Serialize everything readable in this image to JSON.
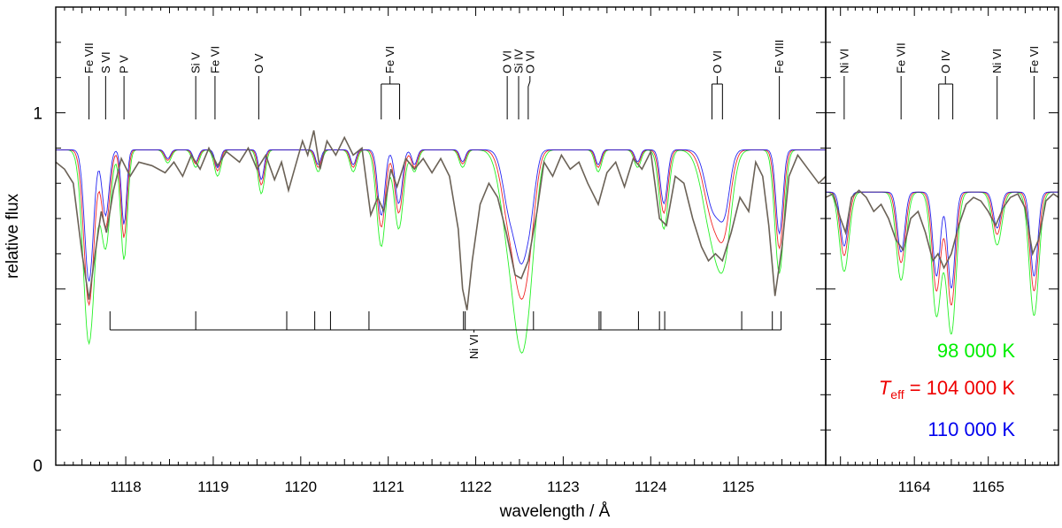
{
  "chart_data": {
    "type": "line",
    "ylabel": "relative flux",
    "xlabel": "wavelength / Å",
    "ylim": [
      0,
      1.3
    ],
    "yticks": [
      {
        "value": 0,
        "label": "0"
      },
      {
        "value": 1,
        "label": "1"
      }
    ],
    "grid": false,
    "legend_position": "bottom-right",
    "legend": [
      {
        "text": "98 000 K",
        "color": "#00ee00",
        "prefix": "",
        "sub": ""
      },
      {
        "text": "= 104 000 K",
        "color": "#ee0000",
        "prefix": "T",
        "sub": "eff"
      },
      {
        "text": "110 000 K",
        "color": "#0000ee",
        "prefix": "",
        "sub": ""
      }
    ],
    "panels": [
      {
        "id": "left",
        "xlim": [
          1117.2,
          1126.0
        ],
        "xticks": [
          1118,
          1119,
          1120,
          1121,
          1122,
          1123,
          1124,
          1125
        ],
        "continuum": 0.895,
        "lines": [
          {
            "x": 1117.58,
            "depth": 0.44,
            "w": 0.05
          },
          {
            "x": 1117.77,
            "depth": 0.22,
            "w": 0.04
          },
          {
            "x": 1117.98,
            "depth": 0.25,
            "w": 0.03
          },
          {
            "x": 1118.48,
            "depth": 0.03,
            "w": 0.03
          },
          {
            "x": 1118.8,
            "depth": 0.04,
            "w": 0.03
          },
          {
            "x": 1119.05,
            "depth": 0.06,
            "w": 0.03
          },
          {
            "x": 1119.55,
            "depth": 0.1,
            "w": 0.03
          },
          {
            "x": 1120.2,
            "depth": 0.05,
            "w": 0.03
          },
          {
            "x": 1120.6,
            "depth": 0.05,
            "w": 0.03
          },
          {
            "x": 1120.92,
            "depth": 0.22,
            "w": 0.04
          },
          {
            "x": 1121.12,
            "depth": 0.18,
            "w": 0.04
          },
          {
            "x": 1121.3,
            "depth": 0.05,
            "w": 0.03
          },
          {
            "x": 1121.85,
            "depth": 0.04,
            "w": 0.03
          },
          {
            "x": 1122.4,
            "depth": 0.22,
            "w": 0.08
          },
          {
            "x": 1122.52,
            "depth": 0.26,
            "w": 0.06
          },
          {
            "x": 1122.62,
            "depth": 0.2,
            "w": 0.06
          },
          {
            "x": 1123.4,
            "depth": 0.05,
            "w": 0.03
          },
          {
            "x": 1123.85,
            "depth": 0.04,
            "w": 0.03
          },
          {
            "x": 1124.15,
            "depth": 0.18,
            "w": 0.04
          },
          {
            "x": 1124.72,
            "depth": 0.2,
            "w": 0.09
          },
          {
            "x": 1124.85,
            "depth": 0.15,
            "w": 0.06
          },
          {
            "x": 1125.47,
            "depth": 0.28,
            "w": 0.04
          }
        ],
        "observed": [
          [
            1117.2,
            0.86
          ],
          [
            1117.3,
            0.84
          ],
          [
            1117.4,
            0.8
          ],
          [
            1117.5,
            0.6
          ],
          [
            1117.58,
            0.47
          ],
          [
            1117.65,
            0.6
          ],
          [
            1117.72,
            0.72
          ],
          [
            1117.78,
            0.66
          ],
          [
            1117.86,
            0.78
          ],
          [
            1117.95,
            0.87
          ],
          [
            1118.05,
            0.82
          ],
          [
            1118.15,
            0.86
          ],
          [
            1118.3,
            0.85
          ],
          [
            1118.45,
            0.83
          ],
          [
            1118.55,
            0.86
          ],
          [
            1118.65,
            0.82
          ],
          [
            1118.75,
            0.88
          ],
          [
            1118.85,
            0.84
          ],
          [
            1118.95,
            0.9
          ],
          [
            1119.05,
            0.85
          ],
          [
            1119.15,
            0.89
          ],
          [
            1119.3,
            0.86
          ],
          [
            1119.4,
            0.9
          ],
          [
            1119.5,
            0.84
          ],
          [
            1119.6,
            0.88
          ],
          [
            1119.7,
            0.81
          ],
          [
            1119.78,
            0.86
          ],
          [
            1119.86,
            0.78
          ],
          [
            1119.94,
            0.85
          ],
          [
            1120.02,
            0.92
          ],
          [
            1120.08,
            0.88
          ],
          [
            1120.15,
            0.95
          ],
          [
            1120.22,
            0.84
          ],
          [
            1120.3,
            0.92
          ],
          [
            1120.4,
            0.88
          ],
          [
            1120.5,
            0.93
          ],
          [
            1120.6,
            0.88
          ],
          [
            1120.7,
            0.9
          ],
          [
            1120.8,
            0.71
          ],
          [
            1120.88,
            0.76
          ],
          [
            1120.95,
            0.72
          ],
          [
            1121.03,
            0.84
          ],
          [
            1121.1,
            0.79
          ],
          [
            1121.2,
            0.87
          ],
          [
            1121.3,
            0.84
          ],
          [
            1121.4,
            0.87
          ],
          [
            1121.5,
            0.83
          ],
          [
            1121.6,
            0.87
          ],
          [
            1121.7,
            0.82
          ],
          [
            1121.8,
            0.67
          ],
          [
            1121.85,
            0.5
          ],
          [
            1121.9,
            0.44
          ],
          [
            1121.96,
            0.58
          ],
          [
            1122.05,
            0.74
          ],
          [
            1122.15,
            0.8
          ],
          [
            1122.25,
            0.76
          ],
          [
            1122.35,
            0.66
          ],
          [
            1122.45,
            0.54
          ],
          [
            1122.52,
            0.53
          ],
          [
            1122.6,
            0.58
          ],
          [
            1122.7,
            0.72
          ],
          [
            1122.78,
            0.86
          ],
          [
            1122.88,
            0.82
          ],
          [
            1122.98,
            0.88
          ],
          [
            1123.08,
            0.84
          ],
          [
            1123.18,
            0.86
          ],
          [
            1123.28,
            0.8
          ],
          [
            1123.4,
            0.74
          ],
          [
            1123.5,
            0.83
          ],
          [
            1123.6,
            0.86
          ],
          [
            1123.7,
            0.79
          ],
          [
            1123.8,
            0.87
          ],
          [
            1123.9,
            0.84
          ],
          [
            1124.0,
            0.89
          ],
          [
            1124.1,
            0.7
          ],
          [
            1124.18,
            0.68
          ],
          [
            1124.28,
            0.82
          ],
          [
            1124.38,
            0.8
          ],
          [
            1124.48,
            0.7
          ],
          [
            1124.58,
            0.62
          ],
          [
            1124.66,
            0.58
          ],
          [
            1124.74,
            0.6
          ],
          [
            1124.82,
            0.58
          ],
          [
            1124.92,
            0.66
          ],
          [
            1125.02,
            0.76
          ],
          [
            1125.12,
            0.72
          ],
          [
            1125.2,
            0.86
          ],
          [
            1125.28,
            0.82
          ],
          [
            1125.35,
            0.68
          ],
          [
            1125.42,
            0.48
          ],
          [
            1125.5,
            0.62
          ],
          [
            1125.58,
            0.82
          ],
          [
            1125.68,
            0.88
          ],
          [
            1125.8,
            0.84
          ],
          [
            1125.92,
            0.8
          ],
          [
            1126.0,
            0.82
          ]
        ],
        "ion_marks": [
          {
            "label": "Fe VII",
            "x": [
              1117.58
            ],
            "top_x": 1117.58
          },
          {
            "label": "S VI",
            "x": [
              1117.77
            ],
            "top_x": 1117.77
          },
          {
            "label": "P V",
            "x": [
              1117.98
            ],
            "top_x": 1117.98
          },
          {
            "label": "Si V",
            "x": [
              1118.8
            ],
            "top_x": 1118.8
          },
          {
            "label": "Fe VI",
            "x": [
              1119.02
            ],
            "top_x": 1119.02
          },
          {
            "label": "O V",
            "x": [
              1119.52
            ],
            "top_x": 1119.52
          },
          {
            "label": "Fe VI",
            "x": [
              1120.92,
              1121.13
            ],
            "top_x": 1121.02
          },
          {
            "label": "O VI",
            "x": [
              1122.36
            ],
            "top_x": 1122.36
          },
          {
            "label": "Si IV",
            "x": [
              1122.49
            ],
            "top_x": 1122.49
          },
          {
            "label": "O VI",
            "x": [
              1122.6
            ],
            "top_x": 1122.62
          },
          {
            "label": "O VI",
            "x": [
              1124.7,
              1124.82
            ],
            "top_x": 1124.76
          },
          {
            "label": "Fe VIII",
            "x": [
              1125.47
            ],
            "top_x": 1125.47
          }
        ],
        "ni_bracket": {
          "label": "Ni VI",
          "x": [
            1117.82,
            1118.8,
            1119.84,
            1120.16,
            1120.34,
            1120.78,
            1121.86,
            1121.88,
            1122.66,
            1123.41,
            1123.43,
            1123.86,
            1124.1,
            1124.16,
            1125.04,
            1125.39,
            1125.49
          ],
          "label_x": 1121.98
        }
      },
      {
        "id": "right",
        "xlim": [
          1162.8,
          1165.95
        ],
        "xticks": [
          1164,
          1165
        ],
        "continuum": 0.775,
        "lines": [
          {
            "x": 1163.05,
            "depth": 0.18,
            "w": 0.05
          },
          {
            "x": 1163.82,
            "depth": 0.2,
            "w": 0.05
          },
          {
            "x": 1164.3,
            "depth": 0.28,
            "w": 0.05
          },
          {
            "x": 1164.5,
            "depth": 0.32,
            "w": 0.05
          },
          {
            "x": 1165.12,
            "depth": 0.12,
            "w": 0.05
          },
          {
            "x": 1165.62,
            "depth": 0.28,
            "w": 0.05
          }
        ],
        "observed": [
          [
            1162.8,
            0.76
          ],
          [
            1162.9,
            0.77
          ],
          [
            1163.0,
            0.7
          ],
          [
            1163.07,
            0.66
          ],
          [
            1163.15,
            0.76
          ],
          [
            1163.25,
            0.78
          ],
          [
            1163.35,
            0.76
          ],
          [
            1163.45,
            0.72
          ],
          [
            1163.55,
            0.74
          ],
          [
            1163.65,
            0.7
          ],
          [
            1163.75,
            0.64
          ],
          [
            1163.85,
            0.61
          ],
          [
            1163.95,
            0.7
          ],
          [
            1164.05,
            0.72
          ],
          [
            1164.15,
            0.66
          ],
          [
            1164.25,
            0.58
          ],
          [
            1164.32,
            0.6
          ],
          [
            1164.4,
            0.56
          ],
          [
            1164.5,
            0.6
          ],
          [
            1164.6,
            0.68
          ],
          [
            1164.7,
            0.74
          ],
          [
            1164.8,
            0.76
          ],
          [
            1164.9,
            0.75
          ],
          [
            1165.0,
            0.72
          ],
          [
            1165.1,
            0.68
          ],
          [
            1165.2,
            0.73
          ],
          [
            1165.3,
            0.76
          ],
          [
            1165.4,
            0.77
          ],
          [
            1165.5,
            0.73
          ],
          [
            1165.6,
            0.6
          ],
          [
            1165.68,
            0.64
          ],
          [
            1165.78,
            0.75
          ],
          [
            1165.88,
            0.77
          ],
          [
            1165.95,
            0.76
          ]
        ],
        "ion_marks": [
          {
            "label": "Ni VI",
            "x": [
              1163.05
            ],
            "top_x": 1163.05
          },
          {
            "label": "Fe VII",
            "x": [
              1163.82
            ],
            "top_x": 1163.82
          },
          {
            "label": "O IV",
            "x": [
              1164.33,
              1164.52
            ],
            "top_x": 1164.42
          },
          {
            "label": "Ni VI",
            "x": [
              1165.12
            ],
            "top_x": 1165.12
          },
          {
            "label": "Fe VI",
            "x": [
              1165.62
            ],
            "top_x": 1165.62
          }
        ]
      }
    ]
  }
}
